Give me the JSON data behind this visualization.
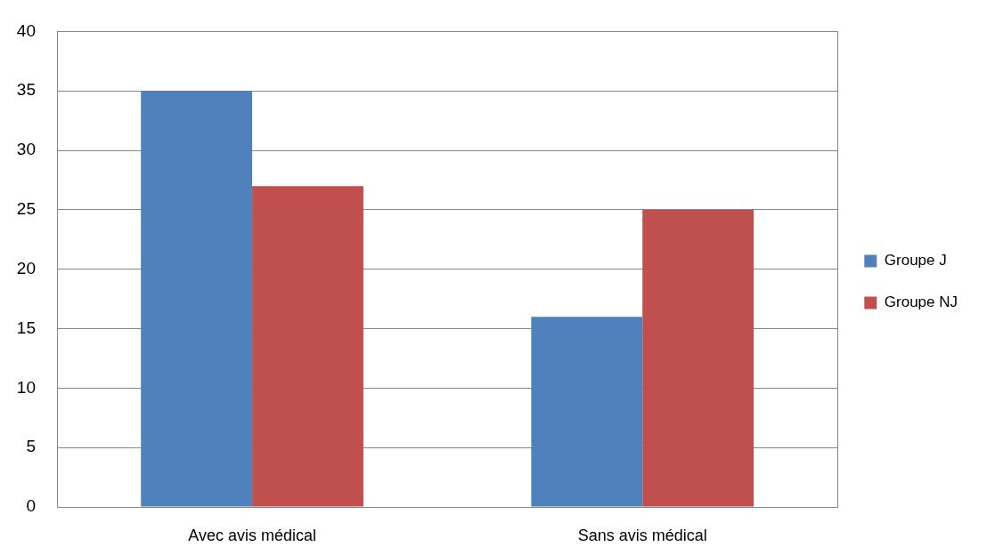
{
  "chart_data": {
    "type": "bar",
    "categories": [
      "Avec avis médical",
      "Sans avis médical"
    ],
    "series": [
      {
        "name": "Groupe J",
        "color": "#4f81bd",
        "values": [
          35,
          16
        ]
      },
      {
        "name": "Groupe NJ",
        "color": "#c0504d",
        "values": [
          27,
          25
        ]
      }
    ],
    "ylim": [
      0,
      40
    ],
    "yticks": [
      0,
      5,
      10,
      15,
      20,
      25,
      30,
      35,
      40
    ],
    "grid": "y",
    "legend": "right"
  }
}
